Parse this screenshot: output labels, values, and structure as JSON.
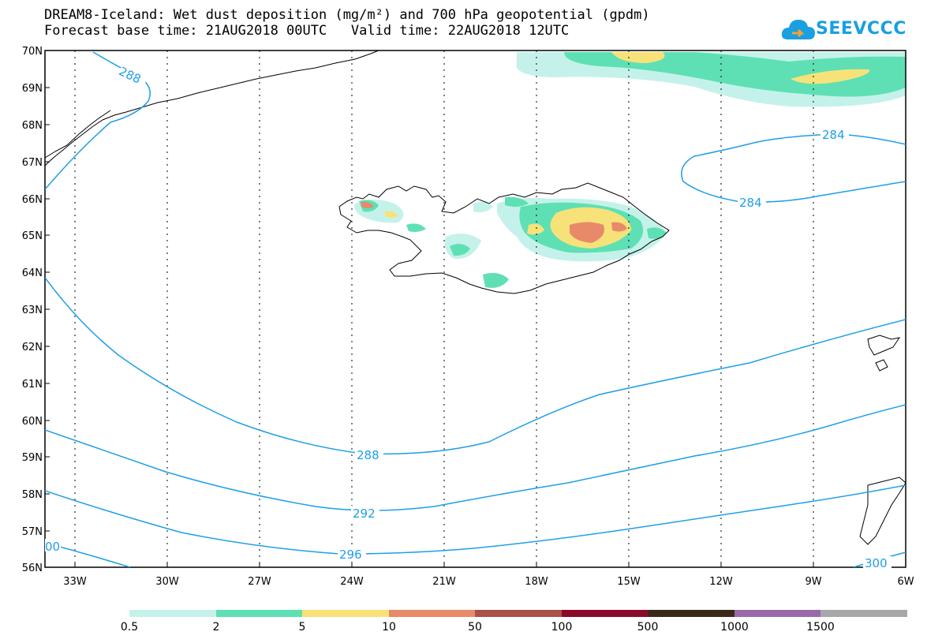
{
  "header": {
    "title_line1": "DREAM8-Iceland: Wet dust deposition (mg/m²) and 700 hPa geopotential (gpdm)",
    "title_line2": "Forecast base time: 21AUG2018 00UTC   Valid time: 22AUG2018 12UTC"
  },
  "logo": {
    "text": "SEEVCCC",
    "icon": "cloud-icon",
    "color": "#1aa0e0"
  },
  "axes": {
    "lat_labels": [
      "70N",
      "69N",
      "68N",
      "67N",
      "66N",
      "65N",
      "64N",
      "63N",
      "62N",
      "61N",
      "60N",
      "59N",
      "58N",
      "57N",
      "56N"
    ],
    "lon_labels": [
      "33W",
      "30W",
      "27W",
      "24W",
      "21W",
      "18W",
      "15W",
      "12W",
      "9W",
      "6W"
    ]
  },
  "contours": {
    "color": "#1e9fe6",
    "labels": [
      {
        "text": "288"
      },
      {
        "text": "284"
      },
      {
        "text": "284"
      },
      {
        "text": "288"
      },
      {
        "text": "292"
      },
      {
        "text": "296"
      },
      {
        "text": "300"
      },
      {
        "text": "00"
      }
    ]
  },
  "colorbar": {
    "colors": [
      "#c4f2ea",
      "#5ee0b4",
      "#f7e27a",
      "#e88a6a",
      "#a8524a",
      "#8a0a2a",
      "#3a2a1a",
      "#9a6aa8",
      "#a8a8a8"
    ],
    "labels": [
      "0.5",
      "2",
      "5",
      "10",
      "50",
      "100",
      "500",
      "1000",
      "1500"
    ]
  }
}
